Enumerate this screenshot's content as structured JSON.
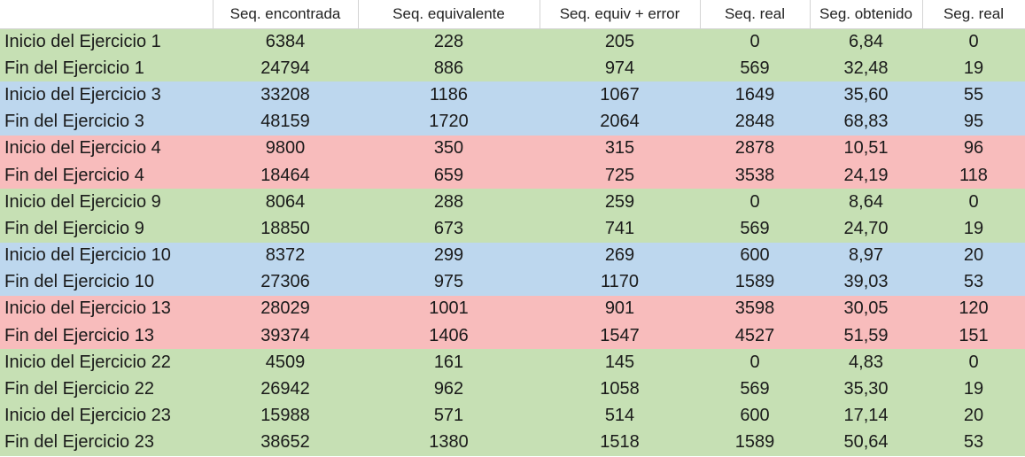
{
  "columns": [
    "",
    "Seq. encontrada",
    "Seq. equivalente",
    "Seq. equiv + error",
    "Seq. real",
    "Seg. obtenido",
    "Seg. real"
  ],
  "colors": {
    "green": "#c6e0b4",
    "blue": "#bdd7ee",
    "red": "#f8bcbc"
  },
  "rows": [
    {
      "name": "Inicio del Ejercicio 1",
      "c1": "6384",
      "c2": "228",
      "c3": "205",
      "c4": "0",
      "c5": "6,84",
      "c6": "0"
    },
    {
      "name": "Fin del Ejercicio 1",
      "c1": "24794",
      "c2": "886",
      "c3": "974",
      "c4": "569",
      "c5": "32,48",
      "c6": "19"
    },
    {
      "name": "Inicio del Ejercicio 3",
      "c1": "33208",
      "c2": "1186",
      "c3": "1067",
      "c4": "1649",
      "c5": "35,60",
      "c6": "55"
    },
    {
      "name": "Fin del Ejercicio 3",
      "c1": "48159",
      "c2": "1720",
      "c3": "2064",
      "c4": "2848",
      "c5": "68,83",
      "c6": "95"
    },
    {
      "name": "Inicio del Ejercicio 4",
      "c1": "9800",
      "c2": "350",
      "c3": "315",
      "c4": "2878",
      "c5": "10,51",
      "c6": "96"
    },
    {
      "name": "Fin del Ejercicio 4",
      "c1": "18464",
      "c2": "659",
      "c3": "725",
      "c4": "3538",
      "c5": "24,19",
      "c6": "118"
    },
    {
      "name": "Inicio del Ejercicio 9",
      "c1": "8064",
      "c2": "288",
      "c3": "259",
      "c4": "0",
      "c5": "8,64",
      "c6": "0"
    },
    {
      "name": "Fin del Ejercicio 9",
      "c1": "18850",
      "c2": "673",
      "c3": "741",
      "c4": "569",
      "c5": "24,70",
      "c6": "19"
    },
    {
      "name": "Inicio del Ejercicio 10",
      "c1": "8372",
      "c2": "299",
      "c3": "269",
      "c4": "600",
      "c5": "8,97",
      "c6": "20"
    },
    {
      "name": "Fin del Ejercicio 10",
      "c1": "27306",
      "c2": "975",
      "c3": "1170",
      "c4": "1589",
      "c5": "39,03",
      "c6": "53"
    },
    {
      "name": "Inicio del Ejercicio 13",
      "c1": "28029",
      "c2": "1001",
      "c3": "901",
      "c4": "3598",
      "c5": "30,05",
      "c6": "120"
    },
    {
      "name": "Fin del Ejercicio 13",
      "c1": "39374",
      "c2": "1406",
      "c3": "1547",
      "c4": "4527",
      "c5": "51,59",
      "c6": "151"
    },
    {
      "name": "Inicio del Ejercicio 22",
      "c1": "4509",
      "c2": "161",
      "c3": "145",
      "c4": "0",
      "c5": "4,83",
      "c6": "0"
    },
    {
      "name": "Fin del Ejercicio 22",
      "c1": "26942",
      "c2": "962",
      "c3": "1058",
      "c4": "569",
      "c5": "35,30",
      "c6": "19"
    },
    {
      "name": "Inicio del Ejercicio 23",
      "c1": "15988",
      "c2": "571",
      "c3": "514",
      "c4": "600",
      "c5": "17,14",
      "c6": "20"
    },
    {
      "name": "Fin del Ejercicio 23",
      "c1": "38652",
      "c2": "1380",
      "c3": "1518",
      "c4": "1589",
      "c5": "50,64",
      "c6": "53"
    }
  ],
  "row_colors": [
    "green",
    "green",
    "blue",
    "blue",
    "red",
    "red",
    "green",
    "green",
    "blue",
    "blue",
    "red",
    "red",
    "green",
    "green",
    "green",
    "green"
  ]
}
